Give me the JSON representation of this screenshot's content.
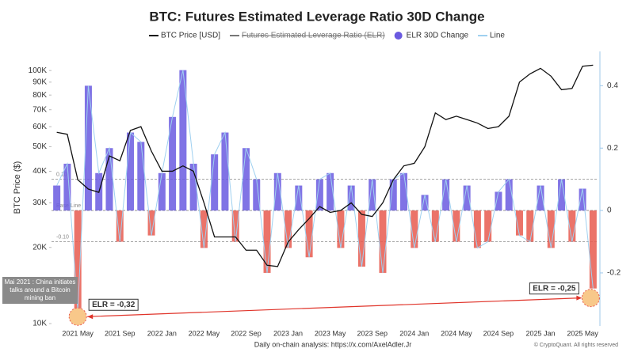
{
  "chart_data": {
    "type": "bar-line",
    "title": "BTC: Futures Estimated Leverage Ratio 30D Change",
    "y_label": "BTC Price ($)",
    "categories": [
      null,
      null,
      "2021 May",
      null,
      null,
      null,
      "2021 Sep",
      null,
      null,
      null,
      "2022 Jan",
      null,
      null,
      null,
      "2022 May",
      null,
      null,
      null,
      "2022 Sep",
      null,
      null,
      null,
      "2023 Jan",
      null,
      null,
      null,
      "2023 May",
      null,
      null,
      null,
      "2023 Sep",
      null,
      null,
      null,
      "2024 Jan",
      null,
      null,
      null,
      "2024 May",
      null,
      null,
      null,
      "2024 Sep",
      null,
      null,
      null,
      "2025 Jan",
      null,
      null,
      null,
      "2025 May",
      null
    ],
    "y_scale": "log",
    "ylim": [
      9930,
      119000
    ],
    "yticks": [
      {
        "value": 10000,
        "label": "10K"
      },
      {
        "value": 20000,
        "label": "20K"
      },
      {
        "value": 30000,
        "label": "30K"
      },
      {
        "value": 40000,
        "label": "40K"
      },
      {
        "value": 50000,
        "label": "50K"
      },
      {
        "value": 60000,
        "label": "60K"
      },
      {
        "value": 70000,
        "label": "70K"
      },
      {
        "value": 80000,
        "label": "80K"
      },
      {
        "value": 90000,
        "label": "90K"
      },
      {
        "value": 100000,
        "label": "100K"
      }
    ],
    "y2lim": [
      -0.365,
      0.51
    ],
    "y2ticks": [
      -0.2,
      0,
      0.2,
      0.4
    ],
    "grid": false,
    "series": [
      {
        "name": "BTC Price [USD]",
        "color": "#111111",
        "values": [
          57000,
          56000,
          37000,
          34000,
          33000,
          46000,
          44000,
          58000,
          60000,
          48000,
          40000,
          40000,
          42000,
          40000,
          30000,
          22000,
          22000,
          22000,
          19500,
          19500,
          17000,
          16800,
          21000,
          23500,
          26000,
          29000,
          27500,
          28000,
          30000,
          27000,
          26500,
          30000,
          37000,
          42000,
          43000,
          50000,
          68000,
          64000,
          66000,
          64000,
          62000,
          59000,
          60000,
          66000,
          90000,
          97000,
          102000,
          95000,
          84000,
          85000,
          104000,
          105000
        ]
      },
      {
        "name": "ELR 30D Change",
        "color": "#6a5ae0",
        "negative_color": "#e85a4f",
        "axis": "y2",
        "values": [
          0.08,
          0.15,
          -0.32,
          0.4,
          0.12,
          0.2,
          -0.1,
          0.25,
          0.22,
          -0.08,
          0.12,
          0.3,
          0.45,
          0.15,
          -0.12,
          0.18,
          0.25,
          -0.1,
          0.2,
          0.1,
          -0.2,
          0.12,
          -0.12,
          0.08,
          -0.15,
          0.1,
          0.12,
          -0.12,
          0.08,
          -0.18,
          0.1,
          -0.2,
          0.1,
          0.12,
          -0.12,
          0.05,
          -0.1,
          0.1,
          -0.1,
          0.08,
          -0.12,
          -0.1,
          0.06,
          0.1,
          -0.08,
          -0.1,
          0.08,
          -0.12,
          0.1,
          -0.1,
          0.07,
          -0.25
        ]
      }
    ],
    "legend": [
      {
        "name": "BTC Price [USD]",
        "color": "#111111",
        "marker": "line",
        "hidden": false
      },
      {
        "name": "Futures Estimated Leverage Ratio (ELR)",
        "color": "#777777",
        "marker": "line",
        "hidden": true
      },
      {
        "name": "ELR 30D Change",
        "color": "#6a5ae0",
        "marker": "dot",
        "hidden": false
      },
      {
        "name": "Line",
        "color": "#9fd0f0",
        "marker": "line",
        "hidden": false
      }
    ],
    "reference_lines": [
      {
        "value": 0.1,
        "label": "0.10"
      },
      {
        "value": 0,
        "label": "Base Line"
      },
      {
        "value": -0.1,
        "label": "-0.10"
      }
    ],
    "annotations": {
      "event": "Mai 2021 : China initiates talks around a Bitcoin mining ban",
      "left_label": "ELR = -0,32",
      "right_label": "ELR = -0,25"
    },
    "footer": {
      "link": "Daily on-chain analysis: https://x.com/AxelAdler.Jr",
      "copyright": "© CryptoQuant. All rights reserved"
    }
  }
}
